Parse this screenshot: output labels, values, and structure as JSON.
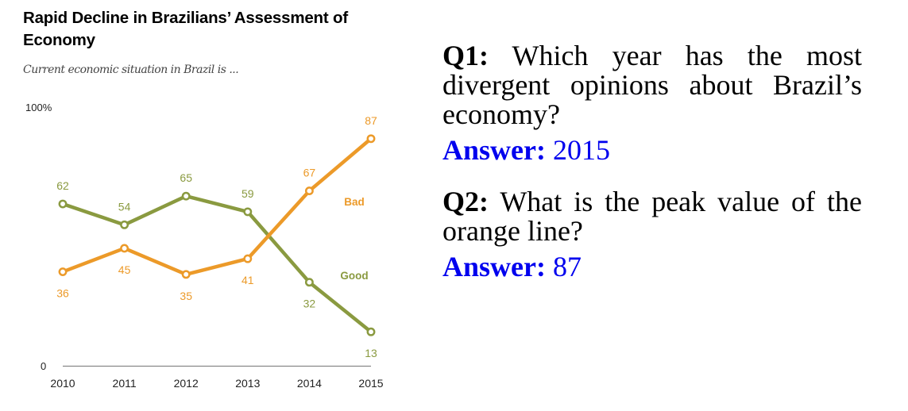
{
  "chart_data": {
    "type": "line",
    "title": "Rapid Decline in Brazilians’ Assessment of Economy",
    "subtitle": "Current economic situation in Brazil is ...",
    "xlabel": "",
    "ylabel": "",
    "x": [
      "2010",
      "2011",
      "2012",
      "2013",
      "2014",
      "2015"
    ],
    "series": [
      {
        "name": "Good",
        "color": "#8a9a40",
        "values": [
          62,
          54,
          65,
          59,
          32,
          13
        ]
      },
      {
        "name": "Bad",
        "color": "#ec9a29",
        "values": [
          36,
          45,
          35,
          41,
          67,
          87
        ]
      }
    ],
    "y_tick_labels": {
      "top": "100%",
      "bottom": "0"
    },
    "ylim": [
      0,
      100
    ],
    "grid": false,
    "legend_position": "inline-right"
  },
  "qa": [
    {
      "q_label": "Q1:",
      "question": "Which year has the most divergent opinions about Brazil’s economy?",
      "a_label": "Answer:",
      "answer": "2015"
    },
    {
      "q_label": "Q2:",
      "question": "What is the peak value of the orange line?",
      "a_label": "Answer:",
      "answer": "87"
    }
  ]
}
